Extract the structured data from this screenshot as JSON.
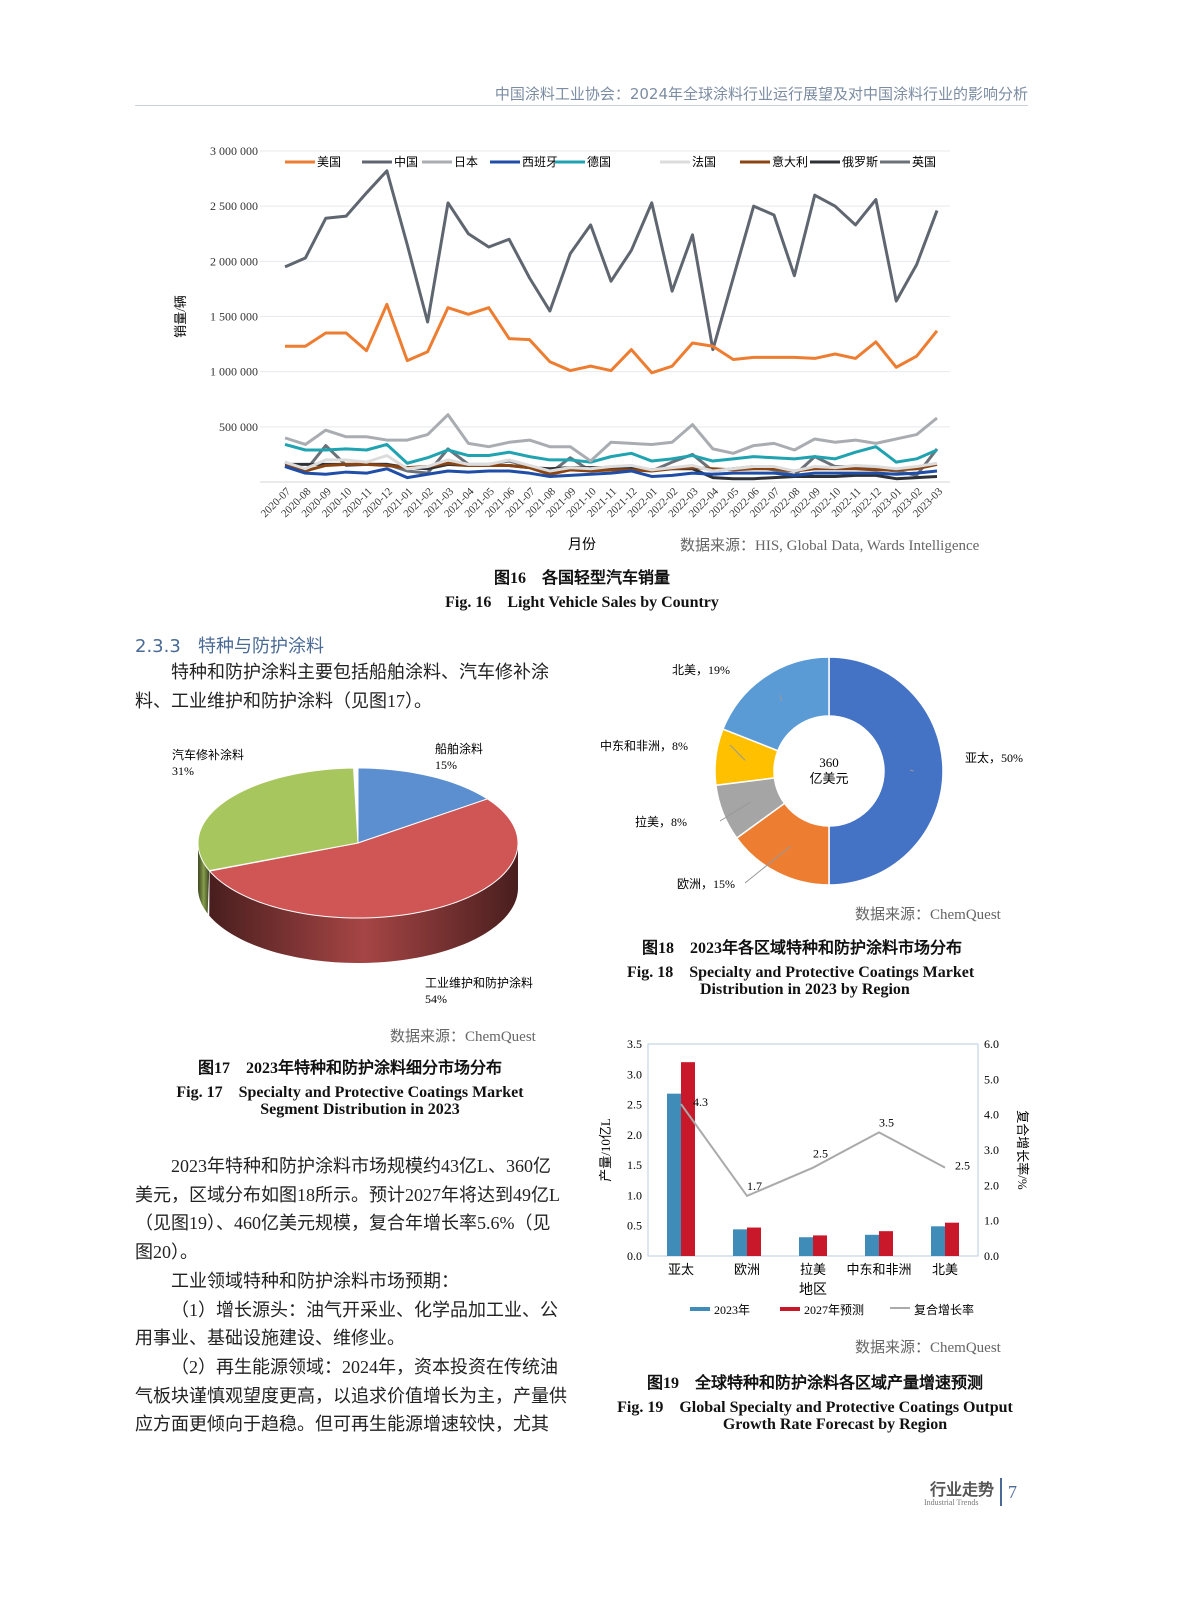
{
  "header": {
    "title": "中国涂料工业协会：2024年全球涂料行业运行展望及对中国涂料行业的影响分析"
  },
  "fig16": {
    "caption_cn": "图16　各国轻型汽车销量",
    "caption_en": "Fig. 16　Light Vehicle Sales by Country",
    "source_label": "数据来源：",
    "source_value": "HIS, Global Data, Wards Intelligence"
  },
  "section": {
    "number": "2.3.3",
    "title": "特种与防护涂料"
  },
  "paragraph1": "特种和防护涂料主要包括船舶涂料、汽车修补涂料、工业维护和防护涂料（见图17）。",
  "fig17": {
    "caption_cn": "图17　2023年特种和防护涂料细分市场分布",
    "caption_en_1": "Fig. 17　Specialty and Protective Coatings Market",
    "caption_en_2": "Segment Distribution in 2023",
    "source_label": "数据来源：",
    "source_value": "ChemQuest"
  },
  "fig18": {
    "caption_cn": "图18　2023年各区域特种和防护涂料市场分布",
    "caption_en_1": "Fig. 18　Specialty and Protective Coatings Market",
    "caption_en_2": "Distribution in 2023 by Region",
    "source_label": "数据来源：",
    "source_value": "ChemQuest"
  },
  "fig19": {
    "caption_cn": "图19　全球特种和防护涂料各区域产量增速预测",
    "caption_en_1": "Fig. 19　Global Specialty and Protective Coatings Output",
    "caption_en_2": "Growth Rate Forecast by Region",
    "source_label": "数据来源：",
    "source_value": "ChemQuest"
  },
  "body": [
    "2023年特种和防护涂料市场规模约43亿L、360亿美元，区域分布如图18所示。预计2027年将达到49亿L（见图19）、460亿美元规模，复合年增长率5.6%（见图20）。",
    "工业领域特种和防护涂料市场预期：",
    "（1）增长源头：油气开采业、化学品加工业、公用事业、基础设施建设、维修业。",
    "（2）再生能源领域：2024年，资本投资在传统油气板块谨慎观望度更高，以追求价值增长为主，产量供应方面更倾向于趋稳。但可再生能源增速较快，尤其"
  ],
  "footer": {
    "title": "行业走势",
    "subtitle": "Industrial Trends",
    "page": "7"
  },
  "chart_data": [
    {
      "type": "line",
      "ylabel": "销量/辆",
      "xlabel": "月份",
      "ylim": [
        0,
        3000000
      ],
      "yticks": [
        "500 000",
        "1 000 000",
        "1 500 000",
        "2 000 000",
        "2 500 000",
        "3 000 000"
      ],
      "ytick_values": [
        500000,
        1000000,
        1500000,
        2000000,
        2500000,
        3000000
      ],
      "grid": true,
      "legend": "top",
      "x": [
        "2020-07",
        "2020-08",
        "2020-09",
        "2020-10",
        "2020-11",
        "2020-12",
        "2021-01",
        "2021-02",
        "2021-03",
        "2021-04",
        "2021-05",
        "2021-06",
        "2021-07",
        "2021-08",
        "2021-09",
        "2021-10",
        "2021-11",
        "2021-12",
        "2022-01",
        "2022-02",
        "2022-03",
        "2022-04",
        "2022-05",
        "2022-06",
        "2022-07",
        "2022-08",
        "2022-09",
        "2022-10",
        "2022-11",
        "2022-12",
        "2023-01",
        "2023-02",
        "2023-03"
      ],
      "series": [
        {
          "name": "美国",
          "color": "#ed7d31",
          "values": [
            1230000,
            1230000,
            1350000,
            1350000,
            1190000,
            1610000,
            1100000,
            1180000,
            1580000,
            1520000,
            1580000,
            1300000,
            1290000,
            1090000,
            1010000,
            1050000,
            1010000,
            1200000,
            990000,
            1050000,
            1260000,
            1230000,
            1110000,
            1130000,
            1130000,
            1130000,
            1120000,
            1160000,
            1120000,
            1270000,
            1040000,
            1140000,
            1370000
          ]
        },
        {
          "name": "中国",
          "color": "#5f6670",
          "values": [
            1950000,
            2030000,
            2390000,
            2410000,
            2620000,
            2820000,
            2150000,
            1450000,
            2530000,
            2250000,
            2130000,
            2200000,
            1850000,
            1550000,
            2070000,
            2330000,
            1820000,
            2100000,
            2530000,
            1730000,
            2240000,
            1200000,
            1850000,
            2500000,
            2420000,
            1870000,
            2600000,
            2500000,
            2330000,
            2560000,
            1640000,
            1970000,
            2460000
          ]
        },
        {
          "name": "日本",
          "color": "#a9adb1",
          "values": [
            400000,
            340000,
            470000,
            410000,
            410000,
            380000,
            380000,
            430000,
            610000,
            350000,
            320000,
            360000,
            380000,
            320000,
            320000,
            190000,
            360000,
            350000,
            340000,
            360000,
            520000,
            300000,
            260000,
            330000,
            350000,
            290000,
            390000,
            360000,
            380000,
            350000,
            390000,
            430000,
            580000
          ]
        },
        {
          "name": "西班牙",
          "color": "#1f4ea8",
          "values": [
            140000,
            80000,
            70000,
            90000,
            80000,
            120000,
            40000,
            70000,
            100000,
            90000,
            100000,
            100000,
            80000,
            50000,
            60000,
            70000,
            80000,
            100000,
            50000,
            60000,
            80000,
            70000,
            80000,
            80000,
            80000,
            60000,
            80000,
            80000,
            80000,
            80000,
            70000,
            80000,
            100000
          ]
        },
        {
          "name": "德国",
          "color": "#1fa3b0",
          "values": [
            340000,
            290000,
            290000,
            300000,
            290000,
            340000,
            170000,
            220000,
            290000,
            240000,
            240000,
            270000,
            230000,
            200000,
            200000,
            180000,
            230000,
            260000,
            190000,
            210000,
            240000,
            190000,
            210000,
            230000,
            220000,
            210000,
            230000,
            210000,
            270000,
            320000,
            180000,
            210000,
            290000
          ]
        },
        {
          "name": "法国",
          "color": "#dcdcdc",
          "values": [
            180000,
            120000,
            200000,
            200000,
            180000,
            240000,
            120000,
            140000,
            200000,
            160000,
            160000,
            200000,
            150000,
            100000,
            130000,
            120000,
            140000,
            150000,
            110000,
            130000,
            150000,
            100000,
            120000,
            140000,
            140000,
            100000,
            140000,
            130000,
            150000,
            140000,
            120000,
            140000,
            170000
          ]
        },
        {
          "name": "意大利",
          "color": "#8b4513",
          "values": [
            150000,
            100000,
            150000,
            160000,
            160000,
            150000,
            130000,
            140000,
            170000,
            150000,
            150000,
            150000,
            130000,
            70000,
            110000,
            100000,
            110000,
            110000,
            100000,
            120000,
            130000,
            120000,
            110000,
            120000,
            120000,
            100000,
            120000,
            120000,
            120000,
            110000,
            110000,
            120000,
            160000
          ]
        },
        {
          "name": "俄罗斯",
          "color": "#2e3136",
          "values": [
            160000,
            160000,
            160000,
            160000,
            160000,
            160000,
            130000,
            120000,
            160000,
            150000,
            150000,
            150000,
            130000,
            120000,
            130000,
            130000,
            130000,
            130000,
            110000,
            120000,
            120000,
            40000,
            30000,
            30000,
            40000,
            50000,
            50000,
            50000,
            60000,
            60000,
            30000,
            40000,
            50000
          ]
        },
        {
          "name": "英国",
          "color": "#6b7178",
          "values": [
            180000,
            100000,
            330000,
            150000,
            160000,
            160000,
            100000,
            80000,
            300000,
            160000,
            160000,
            190000,
            140000,
            80000,
            220000,
            100000,
            120000,
            140000,
            100000,
            180000,
            250000,
            100000,
            120000,
            140000,
            110000,
            60000,
            230000,
            140000,
            140000,
            120000,
            100000,
            60000,
            300000
          ]
        }
      ]
    },
    {
      "type": "pie",
      "style": "3d",
      "labels": [
        "船舶涂料",
        "工业维护和防护涂料",
        "汽车修补涂料"
      ],
      "values": [
        15,
        54,
        31
      ],
      "value_labels": [
        "15%",
        "54%",
        "31%"
      ],
      "colors": [
        "#5b8fd0",
        "#d05656",
        "#a8c65e"
      ]
    },
    {
      "type": "pie",
      "style": "donut",
      "center_label_1": "360",
      "center_label_2": "亿美元",
      "labels": [
        "亚太",
        "欧洲",
        "拉美",
        "中东和非洲",
        "北美"
      ],
      "values": [
        50,
        15,
        8,
        8,
        19
      ],
      "label_text": [
        "亚太，50%",
        "欧洲，15%",
        "拉美，8%",
        "中东和非洲，8%",
        "北美，19%"
      ],
      "colors": [
        "#4472c4",
        "#ed7d31",
        "#a5a5a5",
        "#ffc000",
        "#5b9bd5"
      ]
    },
    {
      "type": "bar",
      "xlabel": "地区",
      "ylabel": "产量/10亿L",
      "y2label": "复合增长率/%",
      "ylim": [
        0,
        3.5
      ],
      "y2lim": [
        0,
        6.0
      ],
      "yticks": [
        "0.0",
        "0.5",
        "1.0",
        "1.5",
        "2.0",
        "2.5",
        "3.0",
        "3.5"
      ],
      "y2ticks": [
        "0.0",
        "1.0",
        "2.0",
        "3.0",
        "4.0",
        "5.0",
        "6.0"
      ],
      "legend": "bottom",
      "categories": [
        "亚太",
        "欧洲",
        "拉美",
        "中东和非洲",
        "北美"
      ],
      "series": [
        {
          "name": "2023年",
          "type": "bar",
          "color": "#3f8cb8",
          "values": [
            2.68,
            0.44,
            0.31,
            0.35,
            0.49
          ]
        },
        {
          "name": "2027年预测",
          "type": "bar",
          "color": "#c8182a",
          "values": [
            3.2,
            0.47,
            0.34,
            0.41,
            0.55
          ]
        },
        {
          "name": "复合增长率",
          "type": "line",
          "axis": "right",
          "color": "#aaaaaa",
          "values": [
            4.3,
            1.7,
            2.5,
            3.5,
            2.5
          ],
          "data_labels": [
            "4.3",
            "1.7",
            "2.5",
            "3.5",
            "2.5"
          ]
        }
      ]
    }
  ]
}
